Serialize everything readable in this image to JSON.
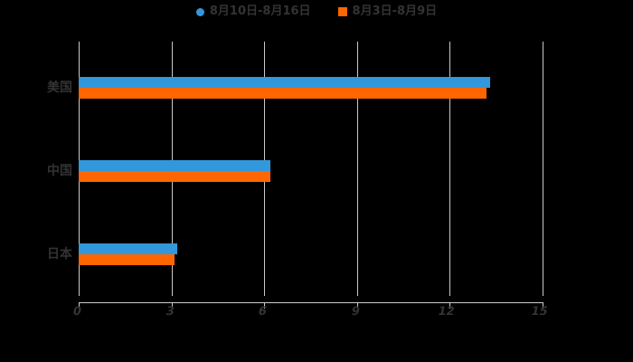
{
  "legend": {
    "items": [
      {
        "label": "8月10日-8月16日",
        "color": "#3398db",
        "marker": "circle"
      },
      {
        "label": "8月3日-8月9日",
        "color": "#ff6600",
        "marker": "square"
      }
    ]
  },
  "chart_data": {
    "type": "bar",
    "orientation": "horizontal",
    "title": "",
    "xlabel": "",
    "ylabel": "",
    "categories": [
      "美国",
      "中国",
      "日本"
    ],
    "series": [
      {
        "name": "8月10日-8月16日",
        "color": "#3398db",
        "values": [
          13.3,
          6.2,
          3.2
        ]
      },
      {
        "name": "8月3日-8月9日",
        "color": "#ff6600",
        "values": [
          13.2,
          6.2,
          3.1
        ]
      }
    ],
    "xlim": [
      0,
      15
    ],
    "x_ticks": [
      0,
      3,
      6,
      9,
      12,
      15
    ],
    "grid": true,
    "legend_position": "top",
    "background": "#000000",
    "text_color": "#333333",
    "axis_line_color": "#cccccc"
  }
}
